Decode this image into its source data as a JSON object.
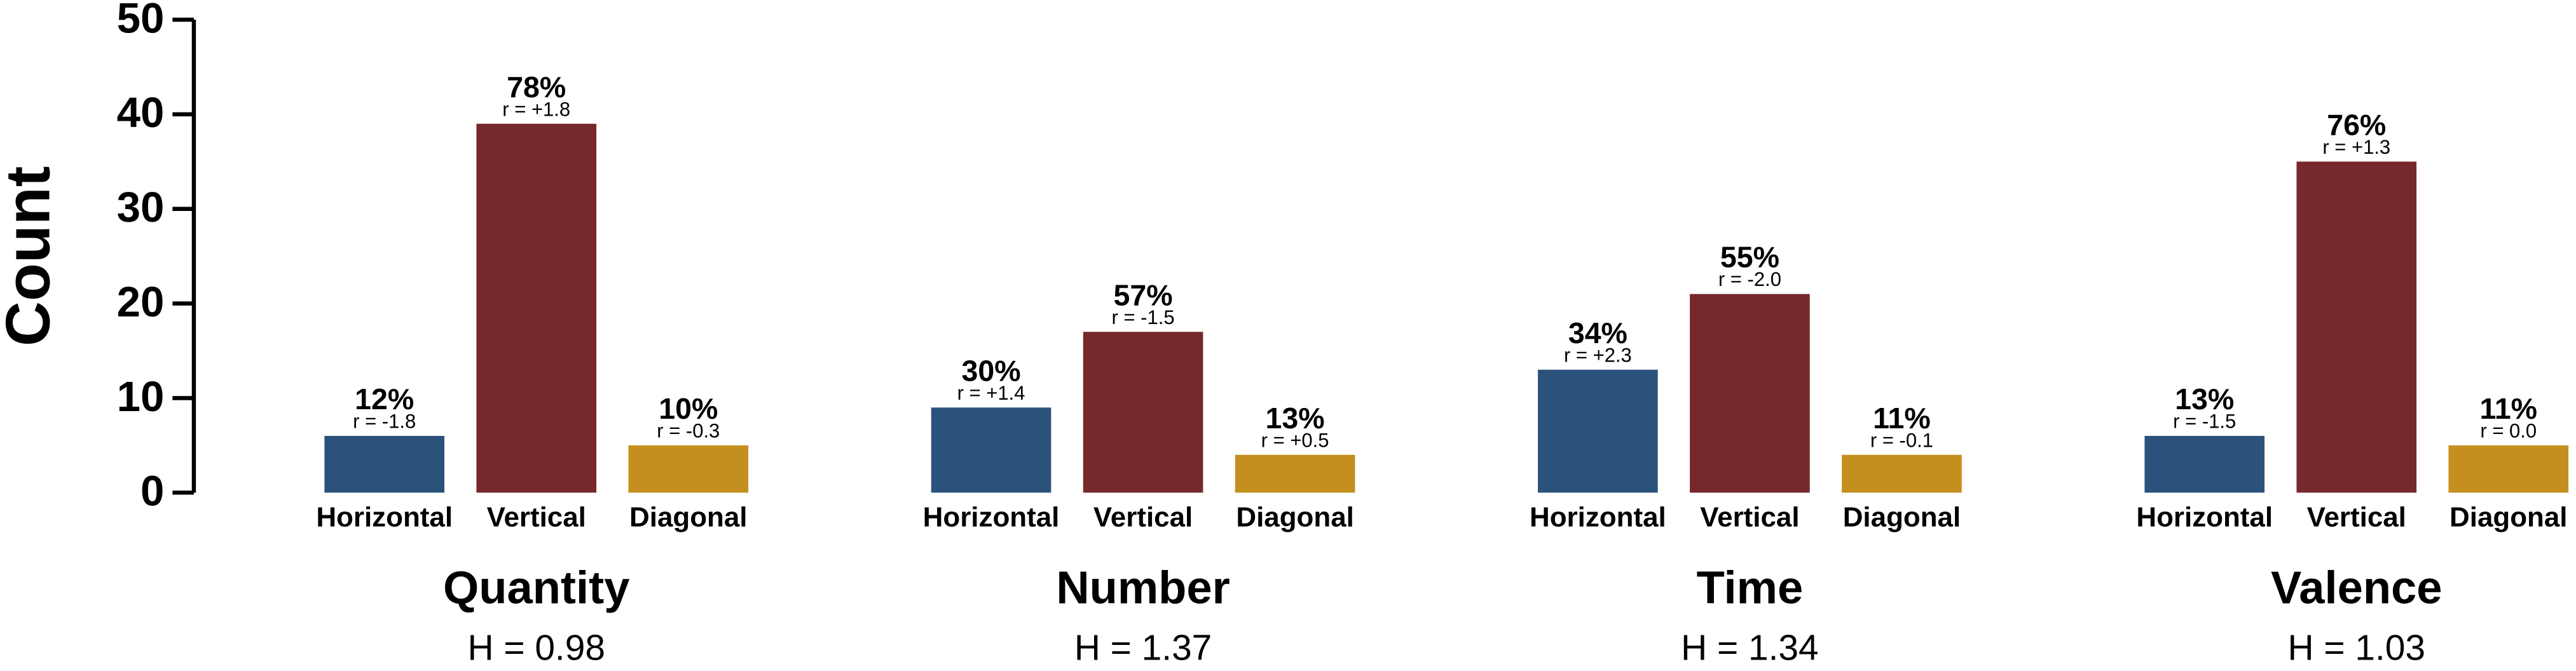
{
  "chart_data": [
    {
      "type": "bar",
      "title": "Quantity",
      "subtitle": "H = 0.98",
      "ylabel": "Count",
      "categories": [
        "Horizontal",
        "Vertical",
        "Diagonal"
      ],
      "values": [
        6,
        39,
        5
      ],
      "percent_labels": [
        "12%",
        "78%",
        "10%"
      ],
      "r_labels": [
        "r = -1.8",
        "r = +1.8",
        "r = -0.3"
      ],
      "colors": [
        "#2b527a",
        "#77282d",
        "#c48f1f"
      ],
      "ylim": [
        0,
        50
      ],
      "yticks": [
        0,
        10,
        20,
        30,
        40,
        50
      ]
    },
    {
      "type": "bar",
      "title": "Number",
      "subtitle": "H = 1.37",
      "categories": [
        "Horizontal",
        "Vertical",
        "Diagonal"
      ],
      "values": [
        9,
        17,
        4
      ],
      "percent_labels": [
        "30%",
        "57%",
        "13%"
      ],
      "r_labels": [
        "r = +1.4",
        "r = -1.5",
        "r = +0.5"
      ],
      "colors": [
        "#2b527a",
        "#77282d",
        "#c48f1f"
      ],
      "ylim": [
        0,
        50
      ]
    },
    {
      "type": "bar",
      "title": "Time",
      "subtitle": "H = 1.34",
      "categories": [
        "Horizontal",
        "Vertical",
        "Diagonal"
      ],
      "values": [
        13,
        21,
        4
      ],
      "percent_labels": [
        "34%",
        "55%",
        "11%"
      ],
      "r_labels": [
        "r = +2.3",
        "r = -2.0",
        "r = -0.1"
      ],
      "colors": [
        "#2b527a",
        "#77282d",
        "#c48f1f"
      ],
      "ylim": [
        0,
        50
      ]
    },
    {
      "type": "bar",
      "title": "Valence",
      "subtitle": "H = 1.03",
      "categories": [
        "Horizontal",
        "Vertical",
        "Diagonal"
      ],
      "values": [
        6,
        35,
        5
      ],
      "percent_labels": [
        "13%",
        "76%",
        "11%"
      ],
      "r_labels": [
        "r = -1.5",
        "r = +1.3",
        "r = 0.0"
      ],
      "colors": [
        "#2b527a",
        "#77282d",
        "#c48f1f"
      ],
      "ylim": [
        0,
        50
      ]
    }
  ]
}
